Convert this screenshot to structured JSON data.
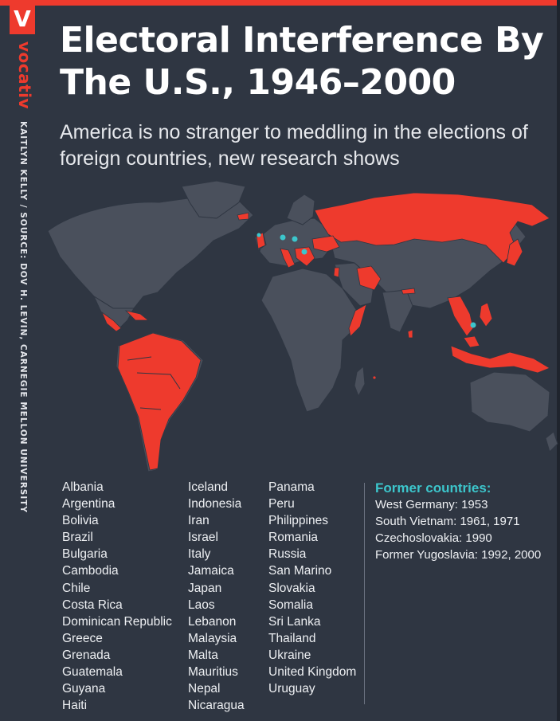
{
  "brand": {
    "logo_letter": "V",
    "name": "vocativ"
  },
  "credit": "KAITLYN KELLY / SOURCE: DOV H. LEVIN, CARNEGIE MELLON UNIVERSITY",
  "title": "Electoral Interference By The U.S., 1946–2000",
  "subtitle": "America is no stranger to meddling in the elections of foreign countries, new research shows",
  "colors": {
    "highlight": "#ee3a2d",
    "land": "#4a505c",
    "ocean": "#2f3642",
    "former_marker": "#3cc6cc",
    "text": "#eef0f3"
  },
  "countries": {
    "column1": [
      "Albania",
      "Argentina",
      "Bolivia",
      "Brazil",
      "Bulgaria",
      "Cambodia",
      "Chile",
      "Costa Rica",
      "Dominican Republic",
      "Greece",
      "Grenada",
      "Guatemala",
      "Guyana",
      "Haiti"
    ],
    "column2": [
      "Iceland",
      "Indonesia",
      "Iran",
      "Israel",
      "Italy",
      "Jamaica",
      "Japan",
      "Laos",
      "Lebanon",
      "Malaysia",
      "Malta",
      "Mauritius",
      "Nepal",
      "Nicaragua"
    ],
    "column3": [
      "Panama",
      "Peru",
      "Philippines",
      "Romania",
      "Russia",
      "San Marino",
      "Slovakia",
      "Somalia",
      "Sri Lanka",
      "Thailand",
      "Ukraine",
      "United Kingdom",
      "Uruguay"
    ]
  },
  "former": {
    "heading": "Former countries:",
    "items": [
      "West Germany: 1953",
      "South Vietnam: 1961, 1971",
      "Czechoslovakia: 1990",
      "Former Yugoslavia: 1992, 2000"
    ]
  }
}
